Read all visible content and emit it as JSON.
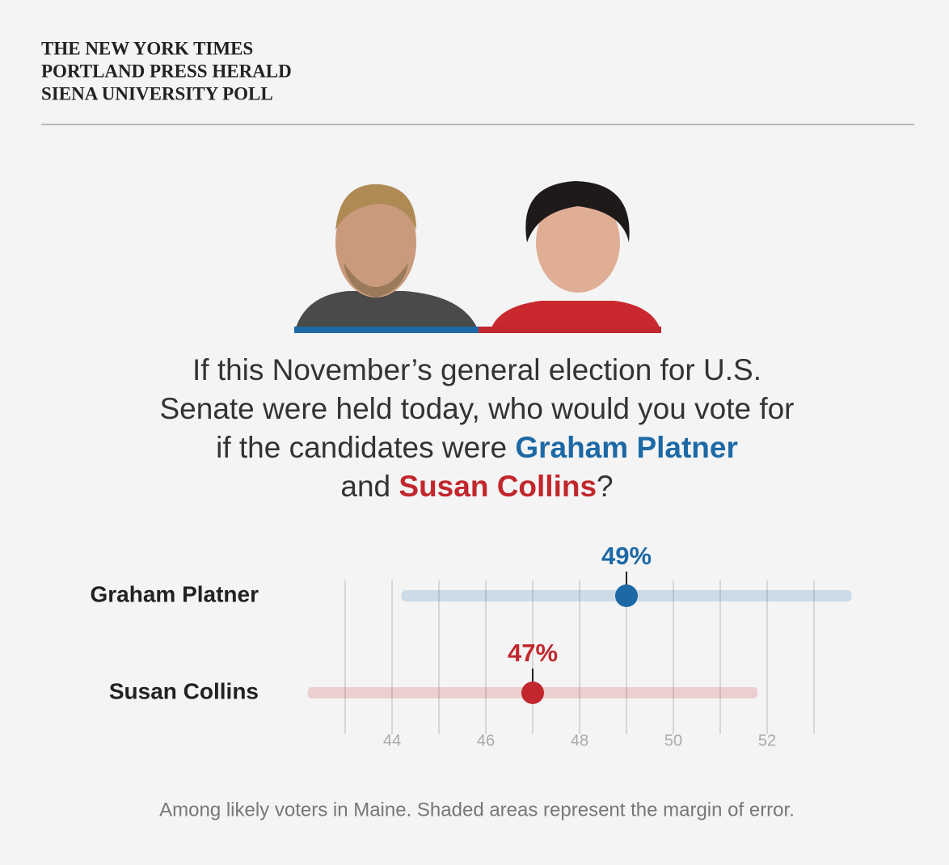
{
  "header": {
    "lines": [
      "THE NEW YORK TIMES",
      "PORTLAND PRESS HERALD",
      "SIENA UNIVERSITY POLL"
    ]
  },
  "question": [
    "If this November’s general election for U.S. Senate were held today, who would you vote for if the candidates were",
    "and",
    "?"
  ],
  "chart_data": {
    "type": "dot_interval",
    "series": [
      {
        "name": "Graham Platner",
        "color": "#1d69a6",
        "values": [
          49
        ],
        "value_labels": [
          "49%"
        ],
        "errors": [
          4.8
        ]
      },
      {
        "name": "Susan Collins",
        "color": "#c1272d",
        "values": [
          47
        ],
        "value_labels": [
          "47%"
        ],
        "errors": [
          4.8
        ]
      }
    ],
    "xlim": [
      42,
      54
    ],
    "xticks": [
      44,
      46,
      48,
      50,
      52
    ],
    "grid_lines": [
      43,
      44,
      45,
      46,
      47,
      48,
      49,
      50,
      51,
      52,
      53
    ],
    "note": "Among likely voters in Maine. Shaded areas represent the margin of error."
  }
}
